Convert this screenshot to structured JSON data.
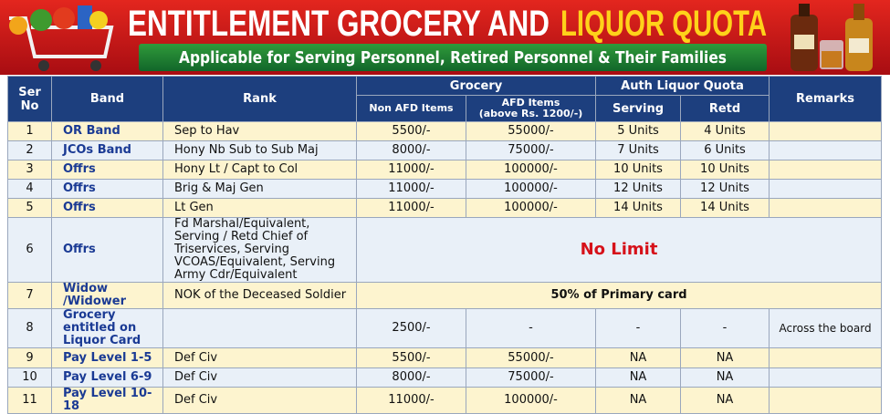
{
  "header": {
    "title_part1": "ENTITLEMENT GROCERY AND",
    "title_part2": "LIQUOR QUOTA",
    "subtitle": "Applicable for Serving Personnel, Retired Personnel & Their Families"
  },
  "table": {
    "columns": {
      "ser_no": "Ser No",
      "band": "Band",
      "rank": "Rank",
      "grocery": "Grocery",
      "non_afd": "Non AFD Items",
      "afd": "AFD Items",
      "afd_note": "(above Rs. 1200/-)",
      "liquor": "Auth Liquor Quota",
      "serving": "Serving",
      "retd": "Retd",
      "remarks": "Remarks"
    },
    "rows": [
      {
        "ser": "1",
        "band": "OR Band",
        "rank": "Sep to Hav",
        "non_afd": "5500/-",
        "afd": "55000/-",
        "serving": "5 Units",
        "retd": "4 Units"
      },
      {
        "ser": "2",
        "band": "JCOs Band",
        "rank": "Hony Nb Sub to Sub Maj",
        "non_afd": "8000/-",
        "afd": "75000/-",
        "serving": "7 Units",
        "retd": "6 Units"
      },
      {
        "ser": "3",
        "band": "Offrs",
        "rank": "Hony Lt / Capt to Col",
        "non_afd": "11000/-",
        "afd": "100000/-",
        "serving": "10 Units",
        "retd": "10 Units"
      },
      {
        "ser": "4",
        "band": "Offrs",
        "rank": "Brig & Maj Gen",
        "non_afd": "11000/-",
        "afd": "100000/-",
        "serving": "12 Units",
        "retd": "12 Units"
      },
      {
        "ser": "5",
        "band": "Offrs",
        "rank": "Lt Gen",
        "non_afd": "11000/-",
        "afd": "100000/-",
        "serving": "14 Units",
        "retd": "14 Units"
      },
      {
        "ser": "6",
        "band": "Offrs",
        "rank": "Fd Marshal/Equivalent, Serving / Retd Chief of Triservices, Serving VCOAS/Equivalent, Serving Army Cdr/Equivalent",
        "merged": "No Limit"
      },
      {
        "ser": "7",
        "band": "Widow /Widower",
        "rank": "NOK of the Deceased Soldier",
        "merged": "50% of Primary card"
      },
      {
        "ser": "8",
        "band": "Grocery entitled on Liquor Card",
        "non_afd": "2500/-",
        "afd": "-",
        "serving": "-",
        "retd": "-",
        "remarks": "Across the board"
      },
      {
        "ser": "9",
        "band": "Pay Level 1-5",
        "rank": "Def Civ",
        "non_afd": "5500/-",
        "afd": "55000/-",
        "serving": "NA",
        "retd": "NA"
      },
      {
        "ser": "10",
        "band": "Pay Level 6-9",
        "rank": "Def Civ",
        "non_afd": "8000/-",
        "afd": "75000/-",
        "serving": "NA",
        "retd": "NA"
      },
      {
        "ser": "11",
        "band": "Pay Level 10-18",
        "rank": "Def Civ",
        "non_afd": "11000/-",
        "afd": "100000/-",
        "serving": "NA",
        "retd": "NA"
      }
    ]
  }
}
